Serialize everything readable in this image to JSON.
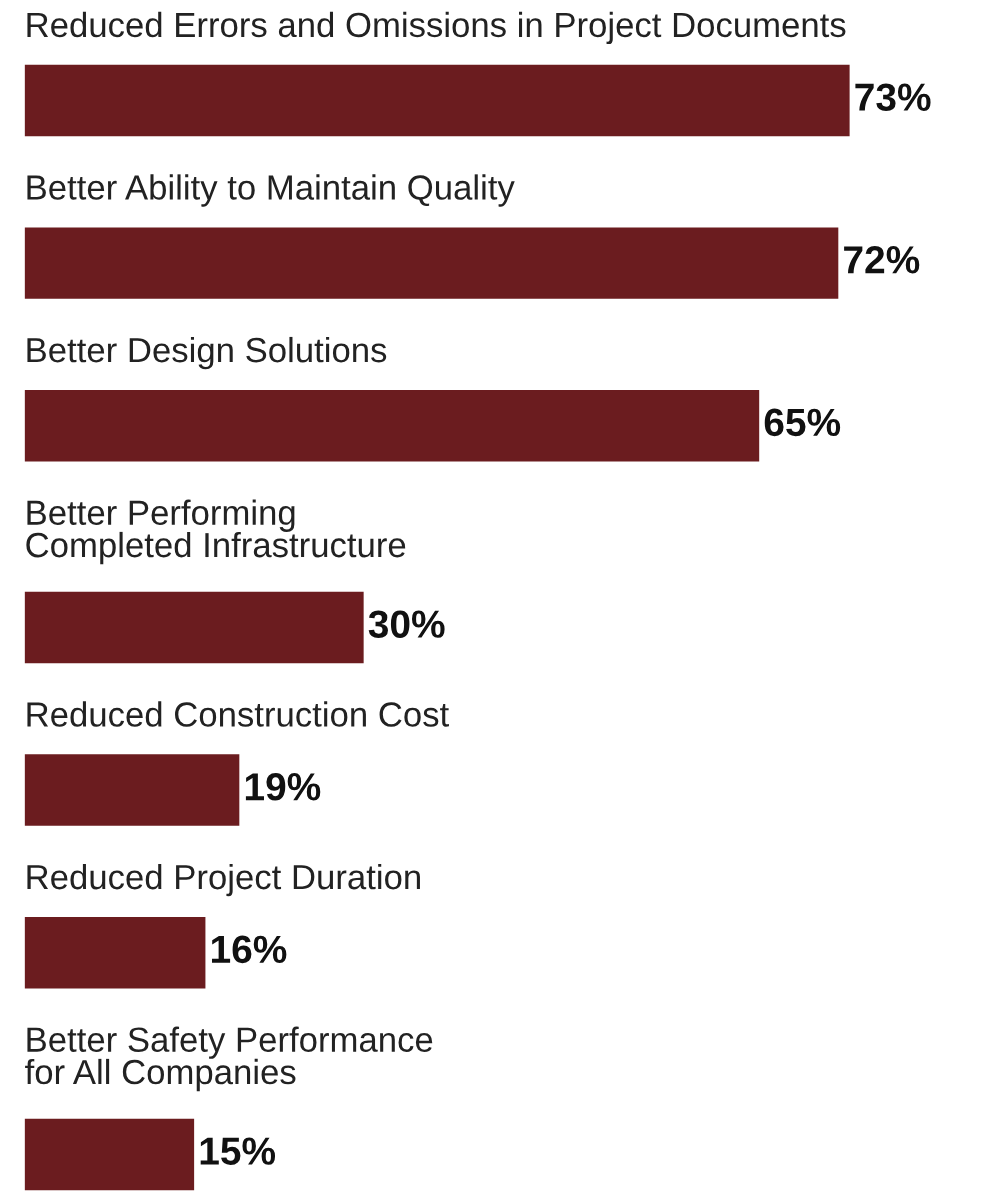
{
  "chart_data": {
    "type": "bar",
    "orientation": "horizontal",
    "categories": [
      "Reduced Errors and Omissions in Project Documents",
      "Better Ability to Maintain Quality",
      "Better Design Solutions",
      "Better Performing\nCompleted Infrastructure",
      "Reduced Construction Cost",
      "Reduced Project Duration",
      "Better Safety Performance\nfor All Companies"
    ],
    "values": [
      73,
      72,
      65,
      30,
      19,
      16,
      15
    ],
    "value_labels": [
      "73%",
      "72%",
      "65%",
      "30%",
      "19%",
      "16%",
      "15%"
    ],
    "color": "#6b1c1f"
  }
}
